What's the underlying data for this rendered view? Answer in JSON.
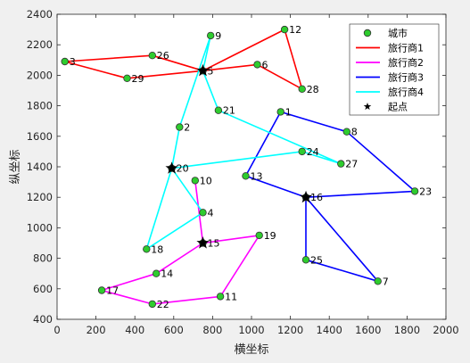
{
  "chart_data": {
    "type": "line",
    "xlabel": "横坐标",
    "ylabel": "纵坐标",
    "xlim": [
      0,
      2000
    ],
    "ylim": [
      400,
      2400
    ],
    "xticks": [
      0,
      200,
      400,
      600,
      800,
      1000,
      1200,
      1400,
      1600,
      1800,
      2000
    ],
    "yticks": [
      400,
      600,
      800,
      1000,
      1200,
      1400,
      1600,
      1800,
      2000,
      2200,
      2400
    ],
    "grid": false,
    "legend_position": "top-right",
    "legend": [
      {
        "label": "城市",
        "type": "marker",
        "color": "#2ecc2e"
      },
      {
        "label": "旅行商1",
        "type": "line",
        "color": "#ff0000"
      },
      {
        "label": "旅行商2",
        "type": "line",
        "color": "#ff00ff"
      },
      {
        "label": "旅行商3",
        "type": "line",
        "color": "#0000ff"
      },
      {
        "label": "旅行商4",
        "type": "line",
        "color": "#00ffff"
      },
      {
        "label": "起点",
        "type": "star",
        "color": "#000000"
      }
    ],
    "cities": [
      {
        "id": "1",
        "x": 1150,
        "y": 1760
      },
      {
        "id": "2",
        "x": 630,
        "y": 1660
      },
      {
        "id": "3",
        "x": 40,
        "y": 2090
      },
      {
        "id": "4",
        "x": 750,
        "y": 1100
      },
      {
        "id": "5",
        "x": 750,
        "y": 2030
      },
      {
        "id": "6",
        "x": 1030,
        "y": 2070
      },
      {
        "id": "7",
        "x": 1650,
        "y": 650
      },
      {
        "id": "8",
        "x": 1490,
        "y": 1630
      },
      {
        "id": "9",
        "x": 790,
        "y": 2260
      },
      {
        "id": "10",
        "x": 710,
        "y": 1310
      },
      {
        "id": "11",
        "x": 840,
        "y": 550
      },
      {
        "id": "12",
        "x": 1170,
        "y": 2300
      },
      {
        "id": "13",
        "x": 970,
        "y": 1340
      },
      {
        "id": "14",
        "x": 510,
        "y": 700
      },
      {
        "id": "15",
        "x": 750,
        "y": 900
      },
      {
        "id": "16",
        "x": 1280,
        "y": 1200
      },
      {
        "id": "17",
        "x": 230,
        "y": 590
      },
      {
        "id": "18",
        "x": 460,
        "y": 860
      },
      {
        "id": "19",
        "x": 1040,
        "y": 950
      },
      {
        "id": "20",
        "x": 590,
        "y": 1390
      },
      {
        "id": "21",
        "x": 830,
        "y": 1770
      },
      {
        "id": "22",
        "x": 490,
        "y": 500
      },
      {
        "id": "23",
        "x": 1840,
        "y": 1240
      },
      {
        "id": "24",
        "x": 1260,
        "y": 1500
      },
      {
        "id": "25",
        "x": 1280,
        "y": 790
      },
      {
        "id": "26",
        "x": 490,
        "y": 2130
      },
      {
        "id": "27",
        "x": 1460,
        "y": 1420
      },
      {
        "id": "28",
        "x": 1260,
        "y": 1910
      },
      {
        "id": "29",
        "x": 360,
        "y": 1980
      }
    ],
    "series": [
      {
        "name": "旅行商1",
        "color": "#ff0000",
        "route": [
          "5",
          "29",
          "3",
          "26",
          "5",
          "12",
          "28",
          "6",
          "5"
        ]
      },
      {
        "name": "旅行商2",
        "color": "#ff00ff",
        "route": [
          "15",
          "10",
          "15",
          "14",
          "17",
          "22",
          "11",
          "19",
          "15"
        ]
      },
      {
        "name": "旅行商3",
        "color": "#0000ff",
        "route": [
          "16",
          "13",
          "1",
          "8",
          "23",
          "16",
          "25",
          "7",
          "16"
        ]
      },
      {
        "name": "旅行商4",
        "color": "#00ffff",
        "route": [
          "20",
          "2",
          "9",
          "5",
          "21",
          "27",
          "24",
          "20",
          "18",
          "4",
          "20"
        ]
      }
    ],
    "start_points": [
      "5",
      "15",
      "16",
      "20"
    ]
  }
}
